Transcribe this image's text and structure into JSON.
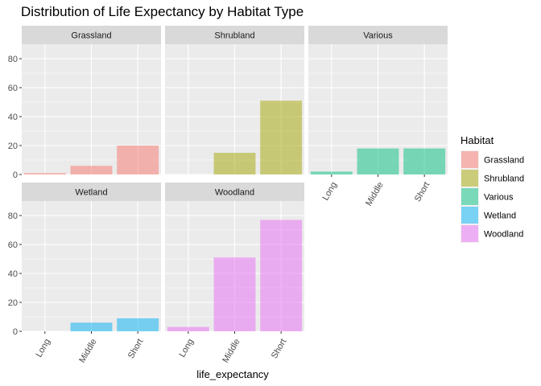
{
  "chart_data": {
    "type": "bar",
    "title": "Distribution of Life Expectancy by Habitat Type",
    "xlabel": "life_expectancy",
    "ylabel": "",
    "categories": [
      "Long",
      "Middle",
      "Short"
    ],
    "ylim": [
      0,
      90
    ],
    "yticks": [
      0,
      20,
      40,
      60,
      80
    ],
    "grid": true,
    "legend": {
      "title": "Habitat",
      "position": "right",
      "items": [
        {
          "label": "Grassland",
          "color": "#F8766D"
        },
        {
          "label": "Shrubland",
          "color": "#A3A500"
        },
        {
          "label": "Various",
          "color": "#00BF7D"
        },
        {
          "label": "Wetland",
          "color": "#00B0F6"
        },
        {
          "label": "Woodland",
          "color": "#E76BF3"
        }
      ]
    },
    "panels": [
      {
        "name": "Grassland",
        "color": "#F8766D",
        "values": [
          1,
          6,
          20
        ]
      },
      {
        "name": "Shrubland",
        "color": "#A3A500",
        "values": [
          0,
          15,
          51
        ]
      },
      {
        "name": "Various",
        "color": "#00BF7D",
        "values": [
          2,
          18,
          18
        ]
      },
      {
        "name": "Wetland",
        "color": "#00B0F6",
        "values": [
          0,
          6,
          9
        ]
      },
      {
        "name": "Woodland",
        "color": "#E76BF3",
        "values": [
          3,
          51,
          77
        ]
      }
    ]
  }
}
